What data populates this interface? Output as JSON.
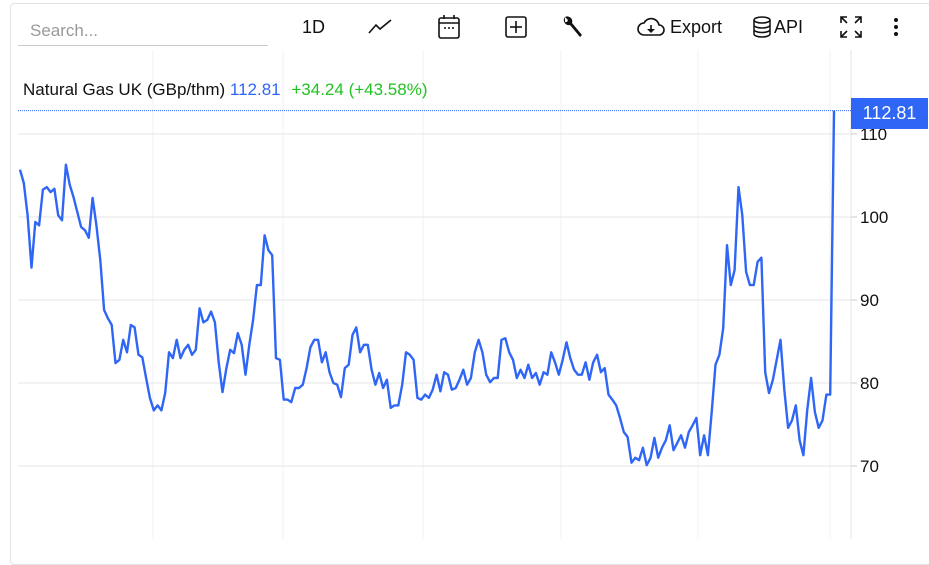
{
  "toolbar": {
    "search_placeholder": "Search...",
    "interval": "1D",
    "export_label": "Export",
    "api_label": "API",
    "icons": [
      "line-chart-icon",
      "calendar-icon",
      "add-box-icon",
      "wrench-icon",
      "cloud-download-icon",
      "database-icon",
      "fullscreen-icon",
      "more-vertical-icon"
    ]
  },
  "legend": {
    "name": "Natural Gas UK (GBp/thm)",
    "last": "112.81",
    "change": "+34.24 (+43.58%)"
  },
  "colors": {
    "line": "#2f66f5",
    "change_positive": "#22c222",
    "grid": "#e6e6e6"
  },
  "chart_data": {
    "type": "line",
    "title": "Natural Gas UK (GBp/thm)",
    "xlabel": "",
    "ylabel": "",
    "ylim": [
      60,
      116
    ],
    "yticks": [
      "70",
      "80",
      "90",
      "100",
      "110"
    ],
    "grid": true,
    "last_value_label": "112.81",
    "series": [
      {
        "values": [
          105.7,
          104.1,
          100.2,
          93.9,
          99.4,
          99,
          103.3,
          103.6,
          103,
          103.4,
          100.2,
          99.6,
          106.3,
          103.9,
          102.4,
          100.6,
          98.8,
          98.4,
          97.5,
          102.3,
          99,
          94.8,
          88.8,
          87.8,
          87,
          82.4,
          82.8,
          85.2,
          83.7,
          87,
          86.7,
          83.4,
          83.1,
          80.6,
          78.2,
          76.7,
          77.3,
          76.7,
          78.8,
          83.7,
          83,
          85.2,
          83,
          84,
          84.6,
          83.4,
          84,
          89,
          87.3,
          87.6,
          88.6,
          87.3,
          82.5,
          78.9,
          81.8,
          84,
          83.6,
          86,
          84.6,
          81,
          84.6,
          87.6,
          91.8,
          91.8,
          97.8,
          96,
          95.4,
          83,
          82.8,
          78,
          78,
          77.7,
          79.4,
          79.4,
          79.8,
          81.8,
          84.3,
          85.2,
          85.2,
          82.5,
          83.7,
          81.3,
          80,
          79.8,
          78.3,
          81.8,
          82.2,
          85.8,
          86.7,
          83.7,
          84.6,
          84.6,
          81.6,
          79.8,
          81.2,
          79.4,
          80.4,
          77,
          77.3,
          77.3,
          79.8,
          83.7,
          83.4,
          82.8,
          78.2,
          78,
          78.6,
          78.2,
          79.2,
          81,
          79,
          81.3,
          81,
          79.2,
          79.4,
          80.4,
          81.6,
          79.8,
          80.6,
          83.7,
          85.2,
          83.7,
          81,
          80.1,
          80.6,
          80.6,
          85.2,
          85.4,
          83.7,
          82.8,
          80.6,
          81.6,
          80.6,
          82.2,
          80.6,
          81.2,
          79.8,
          81.3,
          81,
          83.7,
          82.5,
          81,
          82.8,
          84.9,
          83,
          81.6,
          81,
          81,
          82.5,
          80.4,
          82.5,
          83.4,
          81.3,
          81.8,
          78.6,
          78,
          77.3,
          75.8,
          74.1,
          73.5,
          70.4,
          71,
          70.7,
          72.2,
          70.1,
          71,
          73.4,
          71,
          72.2,
          73.1,
          74.9,
          71.9,
          72.8,
          73.7,
          72.2,
          74.1,
          74.9,
          75.8,
          71.3,
          73.7,
          71.3,
          76.5,
          82.2,
          83.4,
          86.6,
          96.6,
          91.8,
          93.6,
          103.6,
          100.2,
          93.4,
          91.8,
          91.8,
          94.6,
          95.1,
          81.3,
          78.8,
          80.4,
          82.8,
          85.2,
          79.2,
          74.6,
          75.5,
          77.3,
          73.1,
          71.3,
          76.7,
          80.6,
          76.5,
          74.6,
          75.5,
          78.6,
          78.6,
          112.81
        ]
      }
    ]
  }
}
